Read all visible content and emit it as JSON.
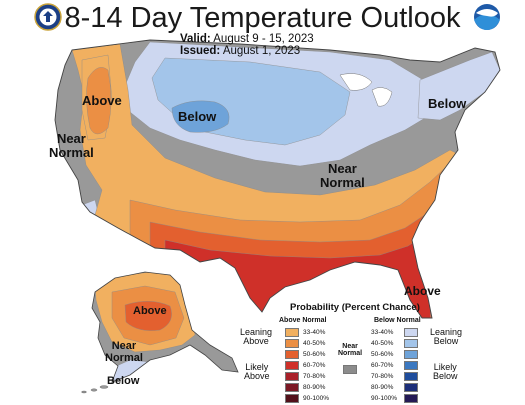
{
  "header": {
    "title": "8-14 Day Temperature Outlook",
    "valid_label": "Valid:",
    "valid_value": "August 9 - 15, 2023",
    "issued_label": "Issued:",
    "issued_value": "August 1, 2023",
    "left_seal": "department-of-commerce-seal",
    "right_logo": "noaa-logo",
    "right_logo_text": "NOAA"
  },
  "map_labels": {
    "above_west": "Above",
    "below_north": "Below",
    "below_northeast": "Below",
    "near_normal_west_1": "Near",
    "near_normal_west_2": "Normal",
    "near_normal_center_1": "Near",
    "near_normal_center_2": "Normal",
    "above_florida": "Above",
    "above_alaska": "Above",
    "near_normal_alaska_1": "Near",
    "near_normal_alaska_2": "Normal",
    "below_alaska": "Below"
  },
  "legend": {
    "title": "Probability (Percent Chance)",
    "above_header": "Above Normal",
    "below_header": "Below Normal",
    "near_header_1": "Near",
    "near_header_2": "Normal",
    "leaning_above_1": "Leaning",
    "leaning_above_2": "Above",
    "likely_above_1": "Likely",
    "likely_above_2": "Above",
    "leaning_below_1": "Leaning",
    "leaning_below_2": "Below",
    "likely_below_1": "Likely",
    "likely_below_2": "Below",
    "above_bins": [
      {
        "range": "33-40%",
        "color": "#f1b060"
      },
      {
        "range": "40-50%",
        "color": "#eb8f44"
      },
      {
        "range": "50-60%",
        "color": "#e3602f"
      },
      {
        "range": "60-70%",
        "color": "#cf3029"
      },
      {
        "range": "70-80%",
        "color": "#a92029"
      },
      {
        "range": "80-90%",
        "color": "#7c1925"
      },
      {
        "range": "90-100%",
        "color": "#52101a"
      }
    ],
    "below_bins": [
      {
        "range": "33-40%",
        "color": "#cdd7f0"
      },
      {
        "range": "40-50%",
        "color": "#a3c5ea"
      },
      {
        "range": "50-60%",
        "color": "#6ea3d9"
      },
      {
        "range": "60-70%",
        "color": "#3b78c0"
      },
      {
        "range": "70-80%",
        "color": "#1f4d9c"
      },
      {
        "range": "80-90%",
        "color": "#1d2f7a"
      },
      {
        "range": "90-100%",
        "color": "#241a55"
      }
    ],
    "near_color": "#8c8c8c"
  },
  "colors": {
    "near_normal": "#999999",
    "above_33": "#f1b060",
    "above_40": "#eb8f44",
    "above_50": "#e3602f",
    "above_60": "#cf3029",
    "below_33": "#cdd7f0",
    "below_40": "#a3c5ea",
    "below_50": "#6ea3d9",
    "ocean": "#ffffff"
  }
}
